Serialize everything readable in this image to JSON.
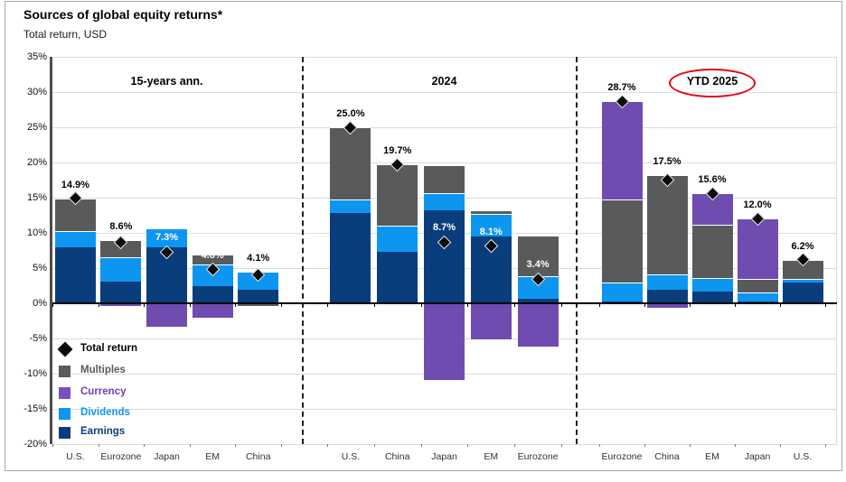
{
  "title": "Sources of global equity returns*",
  "subtitle": "Total return, USD",
  "colors": {
    "earnings": "#0a3d7c",
    "dividends": "#0d96f0",
    "multiples": "#595a5c",
    "currency": "#6f4cb0",
    "total_marker": "#0a0a0a",
    "grid": "#dcdcdc",
    "zero_axis": "#000000",
    "highlight_ellipse": "#e30613",
    "currency_text": "#6a3fb5",
    "dividends_text": "#0d96f0",
    "earnings_text": "#0a3d7c",
    "multiples_text": "#58595b"
  },
  "legend": [
    {
      "label": "Total return",
      "swatch": "diamond",
      "color": "#0a0a0a",
      "text_color": "#000000"
    },
    {
      "label": "Multiples",
      "swatch": "square",
      "color": "#595a5c",
      "text_color": "#58595b"
    },
    {
      "label": "Currency",
      "swatch": "square",
      "color": "#7b4fc4",
      "text_color": "#6a3fb5"
    },
    {
      "label": "Dividends",
      "swatch": "square",
      "color": "#0d96f0",
      "text_color": "#0d96f0"
    },
    {
      "label": "Earnings",
      "swatch": "square",
      "color": "#0a3d7c",
      "text_color": "#0a3d7c"
    }
  ],
  "chart_data": {
    "type": "bar",
    "stacked": true,
    "title": "Sources of global equity returns*",
    "ylabel": "Total return, USD",
    "ylim": [
      -20,
      35
    ],
    "ytick_step": 5,
    "ytick_labels": [
      "35%",
      "30%",
      "25%",
      "20%",
      "15%",
      "10%",
      "5%",
      "0%",
      "-5%",
      "-10%",
      "-15%",
      "-20%"
    ],
    "series_order": [
      "earnings",
      "dividends",
      "multiples",
      "currency"
    ],
    "sections": [
      {
        "label": "15-years ann.",
        "circled": false,
        "bars": [
          {
            "category": "U.S.",
            "earnings": 7.9,
            "dividends": 2.3,
            "multiples": 4.7,
            "currency": 0,
            "total": 14.9,
            "total_label": "14.9%",
            "label_style": "above"
          },
          {
            "category": "Eurozone",
            "earnings": 3.1,
            "dividends": 3.5,
            "multiples": 2.4,
            "currency": -0.4,
            "total": 8.6,
            "total_label": "8.6%",
            "label_style": "above"
          },
          {
            "category": "Japan",
            "earnings": 8.0,
            "dividends": 2.6,
            "multiples": 0,
            "currency": -3.3,
            "total": 7.3,
            "total_label": "7.3%",
            "label_style": "inside"
          },
          {
            "category": "EM",
            "earnings": 2.4,
            "dividends": 3.1,
            "multiples": 1.4,
            "currency": -2.1,
            "total": 4.8,
            "total_label": "4.8%",
            "label_style": "inside"
          },
          {
            "category": "China",
            "earnings": 1.9,
            "dividends": 2.6,
            "multiples": -0.4,
            "currency": 0,
            "total": 4.1,
            "total_label": "4.1%",
            "label_style": "above"
          }
        ]
      },
      {
        "label": "2024",
        "circled": false,
        "bars": [
          {
            "category": "U.S.",
            "earnings": 12.8,
            "dividends": 1.9,
            "multiples": 10.3,
            "currency": 0,
            "total": 25.0,
            "total_label": "25.0%",
            "label_style": "above"
          },
          {
            "category": "China",
            "earnings": 7.3,
            "dividends": 3.7,
            "multiples": 8.7,
            "currency": 0,
            "total": 19.7,
            "total_label": "19.7%",
            "label_style": "above"
          },
          {
            "category": "Japan",
            "earnings": 13.2,
            "dividends": 2.5,
            "multiples": 3.9,
            "currency": -10.9,
            "total": 8.7,
            "total_label": "8.7%",
            "label_style": "inside"
          },
          {
            "category": "EM",
            "earnings": 9.5,
            "dividends": 3.2,
            "multiples": 0.5,
            "currency": -5.1,
            "total": 8.1,
            "total_label": "8.1%",
            "label_style": "inside"
          },
          {
            "category": "Eurozone",
            "earnings": 0.6,
            "dividends": 3.2,
            "multiples": 5.8,
            "currency": -6.2,
            "total": 3.4,
            "total_label": "3.4%",
            "label_style": "inside"
          }
        ]
      },
      {
        "label": "YTD 2025",
        "circled": true,
        "bars": [
          {
            "category": "Eurozone",
            "earnings": 0.3,
            "dividends": 2.6,
            "multiples": 11.9,
            "currency": 13.9,
            "total": 28.7,
            "total_label": "28.7%",
            "label_style": "above"
          },
          {
            "category": "China",
            "earnings": 1.9,
            "dividends": 2.2,
            "multiples": 14.1,
            "currency": -0.7,
            "total": 17.5,
            "total_label": "17.5%",
            "label_style": "above"
          },
          {
            "category": "EM",
            "earnings": 1.7,
            "dividends": 1.9,
            "multiples": 7.6,
            "currency": 4.4,
            "total": 15.6,
            "total_label": "15.6%",
            "label_style": "above"
          },
          {
            "category": "Japan",
            "earnings": 0.3,
            "dividends": 1.2,
            "multiples": 1.9,
            "currency": 8.6,
            "total": 12.0,
            "total_label": "12.0%",
            "label_style": "above"
          },
          {
            "category": "U.S.",
            "earnings": 3.0,
            "dividends": 0.5,
            "multiples": 2.7,
            "currency": 0,
            "total": 6.2,
            "total_label": "6.2%",
            "label_style": "above"
          }
        ]
      }
    ]
  }
}
